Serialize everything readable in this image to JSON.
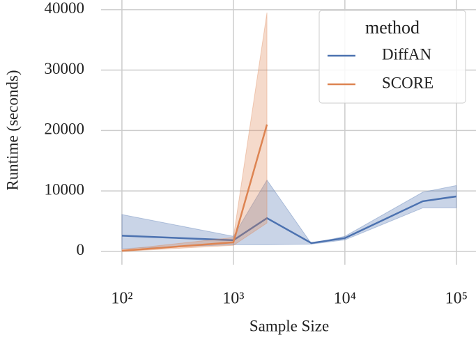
{
  "chart_data": {
    "type": "line",
    "xlabel": "Sample Size",
    "ylabel": "Runtime (seconds)",
    "xscale": "log",
    "grid": true,
    "xlim": [
      65,
      150000
    ],
    "ylim": [
      -2200,
      41600
    ],
    "xticks": [
      {
        "value": 100,
        "label": "10²"
      },
      {
        "value": 1000,
        "label": "10³"
      },
      {
        "value": 10000,
        "label": "10⁴"
      },
      {
        "value": 100000,
        "label": "10⁵"
      }
    ],
    "yticks": [
      0,
      10000,
      20000,
      30000,
      40000
    ],
    "legend": {
      "title": "method",
      "loc": "upper right"
    },
    "series": [
      {
        "name": "DiffAN",
        "color": "#4c72b0",
        "x": [
          100,
          1000,
          2000,
          5000,
          10000,
          50000,
          100000
        ],
        "values": [
          2600,
          1850,
          5500,
          1380,
          2200,
          8300,
          9100
        ],
        "lower": [
          460,
          1100,
          1100,
          1200,
          1900,
          7200,
          7200
        ],
        "upper": [
          6100,
          2500,
          11800,
          1300,
          2500,
          9800,
          10900
        ]
      },
      {
        "name": "SCORE",
        "color": "#dd8452",
        "x": [
          100,
          1000,
          2000
        ],
        "values": [
          100,
          1500,
          21000
        ],
        "lower": [
          0,
          1000,
          4700
        ],
        "upper": [
          300,
          2300,
          39500
        ]
      }
    ]
  }
}
